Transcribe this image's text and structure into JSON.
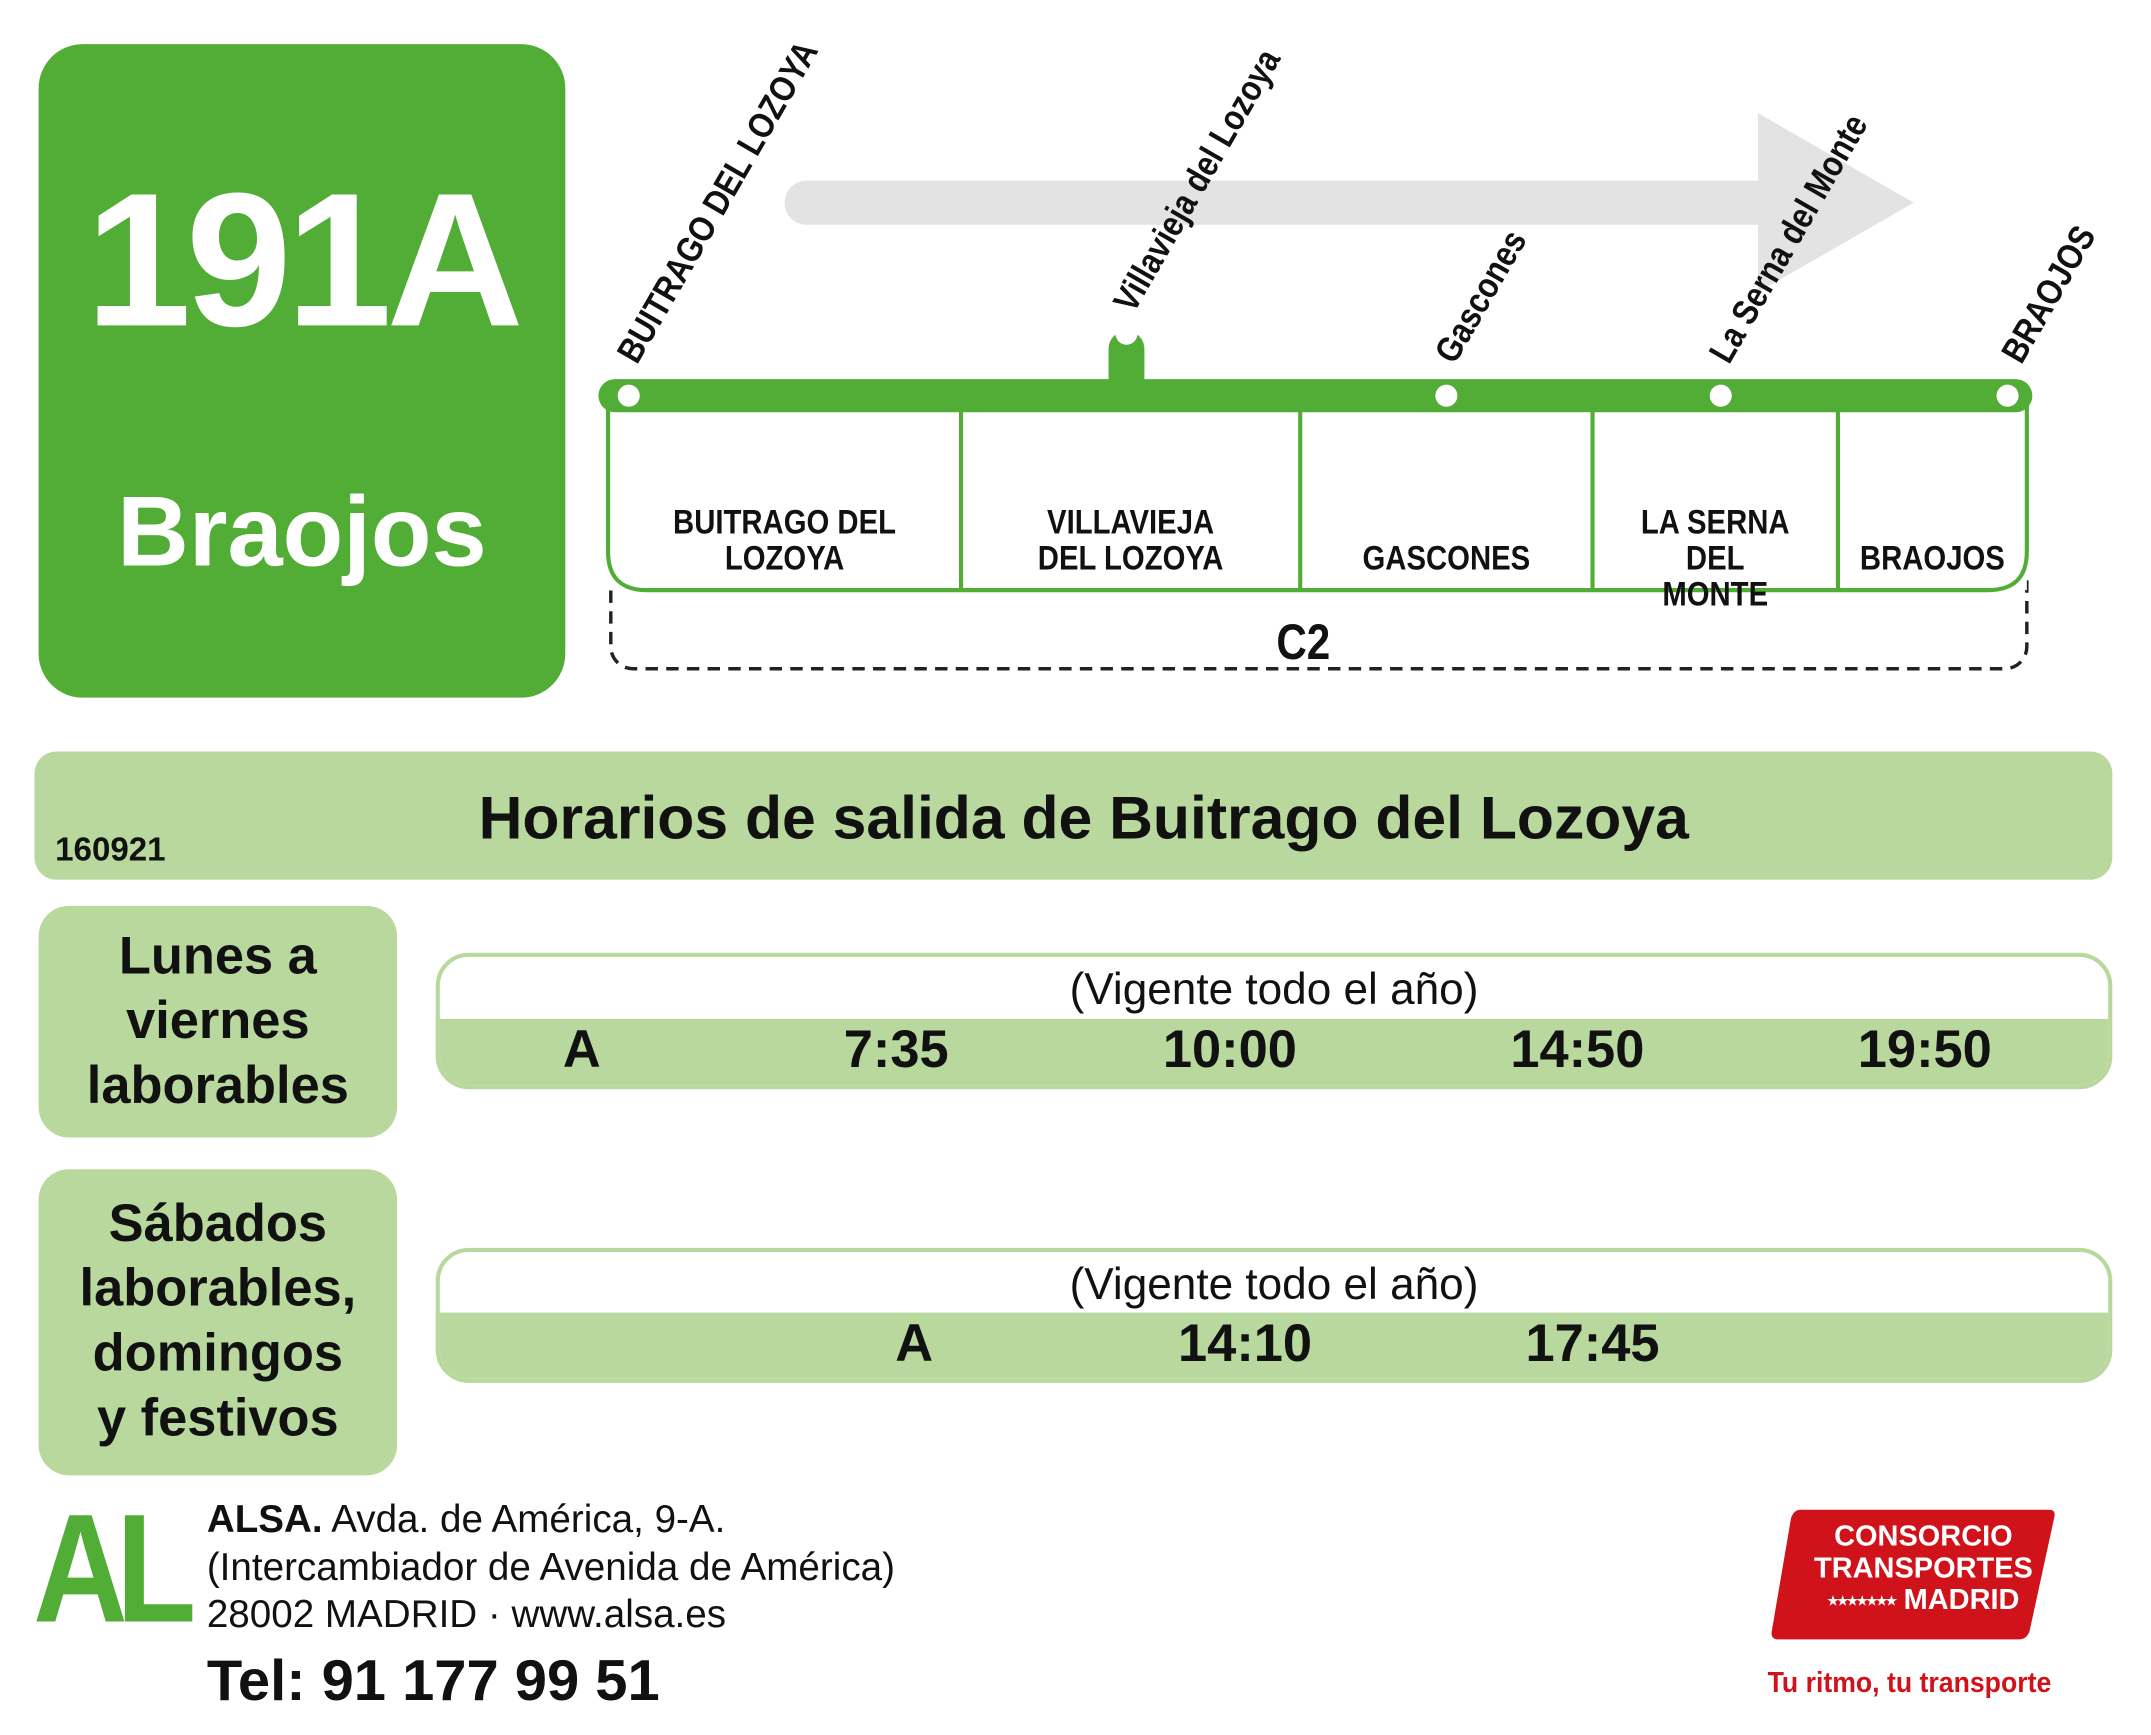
{
  "line": {
    "number": "191A",
    "destination": "Braojos",
    "color": "#52ad37"
  },
  "route": {
    "stops": [
      "BUITRAGO DEL LOZOYA",
      "Villavieja del Lozoya",
      "Gascones",
      "La Serna del Monte",
      "BRAOJOS"
    ],
    "zones": [
      {
        "line1": "BUITRAGO DEL",
        "line2": "LOZOYA"
      },
      {
        "line1": "VILLAVIEJA",
        "line2": "DEL LOZOYA"
      },
      {
        "line1": "",
        "line2": "GASCONES"
      },
      {
        "line1": "LA SERNA DEL",
        "line2": "MONTE"
      },
      {
        "line1": "",
        "line2": "BRAOJOS"
      }
    ],
    "fare_zone": "C2"
  },
  "header": {
    "code": "160921",
    "title": "Horarios de salida de Buitrago del Lozoya"
  },
  "schedules": [
    {
      "days_lines": [
        "Lunes a",
        "viernes",
        "laborables"
      ],
      "note": "(Vigente todo el año)",
      "label": "A",
      "times": [
        "7:35",
        "10:00",
        "14:50",
        "19:50"
      ]
    },
    {
      "days_lines": [
        "Sábados",
        "laborables,",
        "domingos",
        "y festivos"
      ],
      "note": "(Vigente todo el año)",
      "label": "A",
      "times": [
        "14:10",
        "17:45"
      ]
    }
  ],
  "operator": {
    "logo": "AL",
    "name": "ALSA.",
    "address1": " Avda. de América, 9-A.",
    "address2": "(Intercambiador de Avenida de América)",
    "address3": "28002 MADRID · www.alsa.es",
    "phone": "Tel: 91 177 99 51"
  },
  "consortium": {
    "line1": "CONSORCIO",
    "line2": "TRANSPORTES",
    "line3": "MADRID",
    "stars": "★★★★★★★",
    "tagline": "Tu ritmo, tu transporte",
    "color": "#d0121b"
  }
}
